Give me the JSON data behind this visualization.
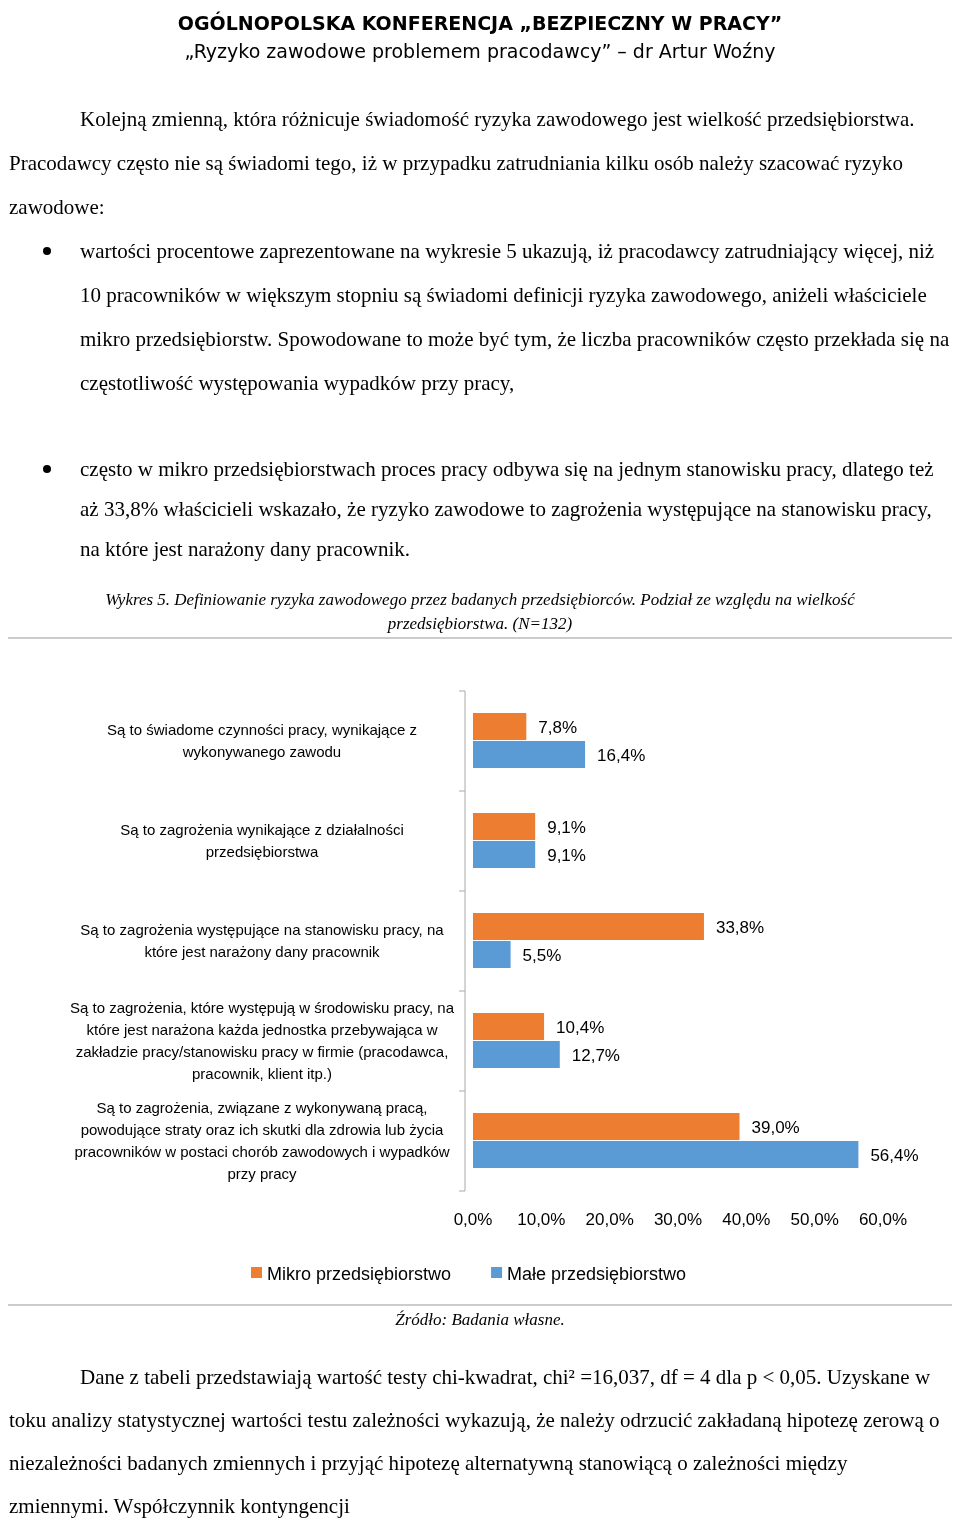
{
  "chart_data": {
    "type": "bar",
    "orientation": "horizontal",
    "title": "Wykres 5. Definiowanie ryzyka zawodowego przez badanych przedsiębiorców. Podział ze względu na wielkość przedsiębiorstwa. (N=132)",
    "annotations": [
      "OGÓLNOPOLSKA KONFERENCJA „BEZPIECZNY W PRACY”",
      "„Ryzyko zawodowe problemem pracodawcy” – dr Artur Woźny",
      "Kolejną zmienną, która różnicuje świadomość ryzyka zawodowego jest wielkość przedsiębiorstwa. Pracodawcy często nie są świadomi tego, iż w przypadku zatrudniania kilku osób należy szacować ryzyko zawodowe:",
      "wartości procentowe zaprezentowane na wykresie 5 ukazują, iż pracodawcy zatrudniający więcej, niż 10 pracowników w większym stopniu są świadomi definicji ryzyka zawodowego, aniżeli właściciele mikro przedsiębiorstw. Spowodowane to może być tym, że liczba pracowników często przekłada się na częstotliwość występowania wypadków przy pracy,",
      "często w mikro przedsiębiorstwach proces pracy odbywa się na jednym stanowisku pracy, dlatego też aż 33,8% właścicieli wskazało, że ryzyko zawodowe to zagrożenia występujące na stanowisku pracy, na które jest narażony dany pracownik.",
      "Źródło: Badania własne.",
      "Dane z tabeli przedstawiają wartość testy chi-kwadrat, chi² =16,037, df = 4 dla p < 0,05. Uzyskane w toku analizy statystycznej wartości testu zależności wykazują, że należy odrzucić zakładaną hipotezę zerową o niezależności badanych zmiennych i przyjąć hipotezę alternatywną stanowiącą o zależności między zmiennymi. Współczynnik kontyngencji"
    ],
    "categories": [
      "Są to świadome czynności pracy, wynikające z wykonywanego zawodu",
      "Są to zagrożenia wynikające z działalności przedsiębiorstwa",
      "Są to zagrożenia występujące na stanowisku pracy, na które jest narażony dany pracownik",
      "Są to zagrożenia, które występują w środowisku pracy, na które jest narażona każda jednostka przebywająca w zakładzie pracy/stanowisku pracy w firmie (pracodawca, pracownik, klient itp.)",
      "Są to zagrożenia, związane z wykonywaną pracą, powodujące straty oraz ich skutki dla zdrowia lub życia pracowników w postaci chorób zawodowych i wypadków przy pracy"
    ],
    "series": [
      {
        "name": "Mikro przedsiębiorstwo",
        "color": "#ed7d31",
        "values": [
          7.8,
          9.1,
          33.8,
          10.4,
          39.0
        ],
        "value_labels": [
          "7,8%",
          "9,1%",
          "33,8%",
          "10,4%",
          "39,0%"
        ]
      },
      {
        "name": "Małe przedsiębiorstwo",
        "color": "#5b9bd5",
        "values": [
          16.4,
          9.1,
          5.5,
          12.7,
          56.4
        ],
        "value_labels": [
          "16,4%",
          "9,1%",
          "5,5%",
          "12,7%",
          "56,4%"
        ]
      }
    ],
    "xlim": [
      0,
      60
    ],
    "xticks": [
      {
        "value": 0,
        "label": "0,0%"
      },
      {
        "value": 10,
        "label": "10,0%"
      },
      {
        "value": 20,
        "label": "20,0%"
      },
      {
        "value": 30,
        "label": "30,0%"
      },
      {
        "value": 40,
        "label": "40,0%"
      },
      {
        "value": 50,
        "label": "50,0%"
      },
      {
        "value": 60,
        "label": "60,0%"
      }
    ],
    "legend": "bottom"
  }
}
